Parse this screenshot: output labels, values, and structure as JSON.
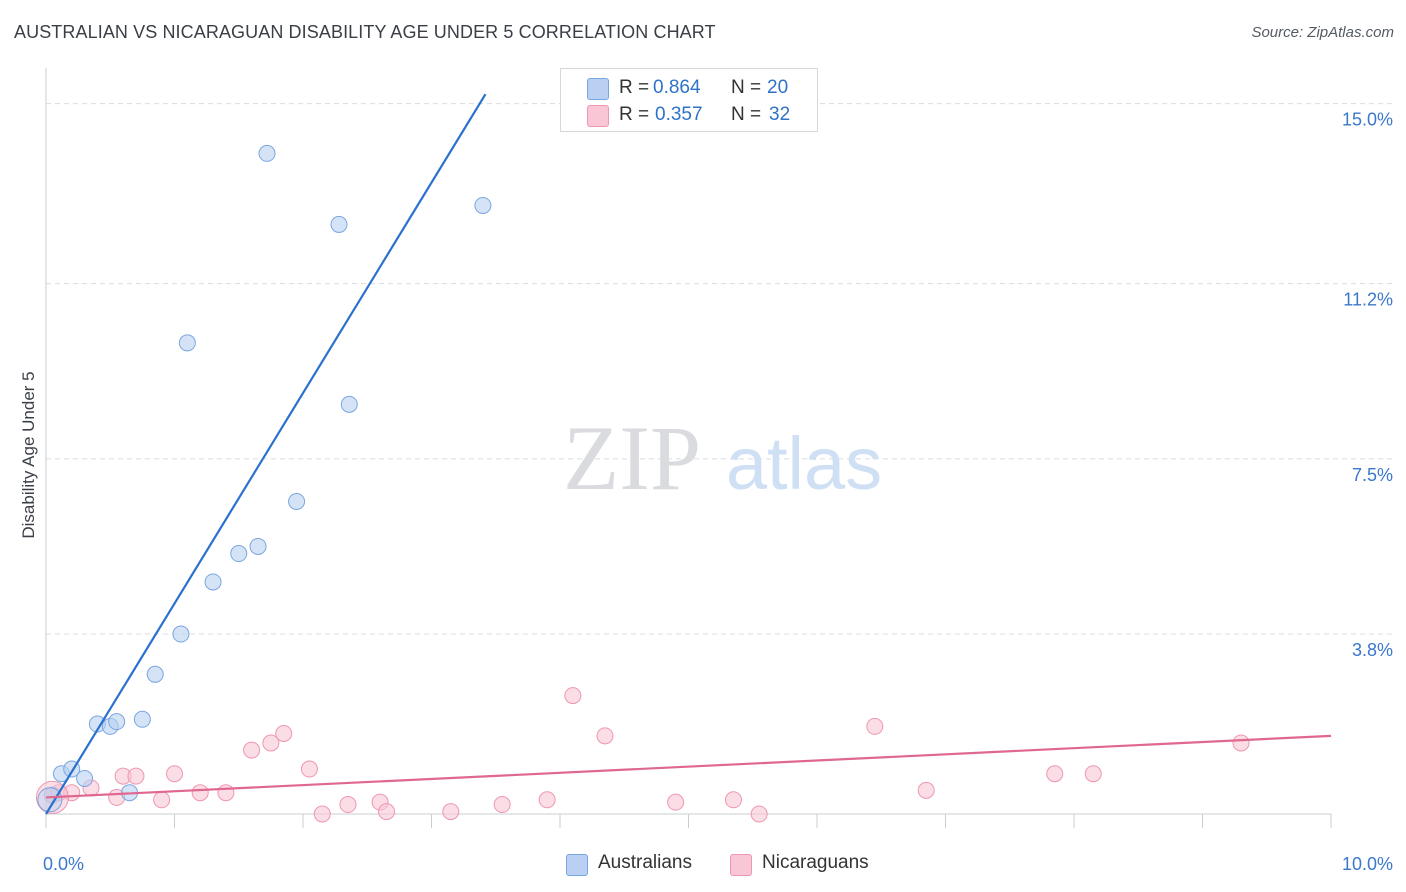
{
  "title": "AUSTRALIAN VS NICARAGUAN DISABILITY AGE UNDER 5 CORRELATION CHART",
  "source": "Source: ZipAtlas.com",
  "watermark": {
    "zip": "ZIP",
    "atlas": "atlas"
  },
  "colors": {
    "blue_fill": "#b9d0f2",
    "blue_stroke": "#7aa6e0",
    "blue_line": "#2a70cf",
    "pink_fill": "#f8c6d4",
    "pink_stroke": "#ee97b2",
    "pink_line": "#e0678f",
    "grid": "#d9dce1",
    "tick_label": "#3a78cc"
  },
  "stats": [
    {
      "series": "Australians",
      "r_label": "R =",
      "r_value": "0.864",
      "n_label": "N =",
      "n_value": "20"
    },
    {
      "series": "Nicaraguans",
      "r_label": "R =",
      "r_value": "0.357",
      "n_label": "N =",
      "n_value": "32"
    }
  ],
  "legend": [
    "Australians",
    "Nicaraguans"
  ],
  "chart_data": {
    "type": "scatter",
    "title": "AUSTRALIAN VS NICARAGUAN DISABILITY AGE UNDER 5 CORRELATION CHART",
    "xlabel": "",
    "ylabel": "Disability Age Under 5",
    "xlim": [
      0,
      10
    ],
    "ylim": [
      0,
      15.5
    ],
    "x_tick_labels": [
      {
        "value": 0,
        "label": "0.0%"
      },
      {
        "value": 10,
        "label": "10.0%"
      }
    ],
    "y_tick_labels": [
      {
        "value": 3.8,
        "label": "3.8%"
      },
      {
        "value": 7.5,
        "label": "7.5%"
      },
      {
        "value": 11.2,
        "label": "11.2%"
      },
      {
        "value": 15.0,
        "label": "15.0%"
      }
    ],
    "grid": true,
    "series": [
      {
        "name": "Australians",
        "x": [
          0.05,
          0.12,
          0.2,
          0.3,
          0.4,
          0.5,
          0.55,
          0.65,
          0.75,
          0.85,
          1.05,
          1.1,
          1.3,
          1.5,
          1.65,
          1.72,
          1.95,
          2.28,
          2.36,
          3.4
        ],
        "y": [
          0.4,
          0.85,
          0.95,
          0.75,
          1.9,
          1.85,
          1.95,
          0.45,
          2.0,
          2.95,
          3.8,
          9.95,
          4.9,
          5.5,
          5.65,
          13.95,
          6.6,
          12.45,
          8.65,
          12.85
        ],
        "trend": {
          "x": [
            0,
            3.42
          ],
          "y": [
            0.0,
            15.2
          ]
        }
      },
      {
        "name": "Nicaraguans",
        "x": [
          0.05,
          0.1,
          0.2,
          0.35,
          0.55,
          0.6,
          0.7,
          0.9,
          1.0,
          1.2,
          1.4,
          1.6,
          1.75,
          1.85,
          2.05,
          2.15,
          2.35,
          2.6,
          2.65,
          3.15,
          3.55,
          3.9,
          4.1,
          4.35,
          4.9,
          5.35,
          5.55,
          6.45,
          6.85,
          7.85,
          8.15,
          9.3
        ],
        "y": [
          0.4,
          0.45,
          0.45,
          0.55,
          0.35,
          0.8,
          0.8,
          0.3,
          0.85,
          0.45,
          0.45,
          1.35,
          1.5,
          1.7,
          0.95,
          0.0,
          0.2,
          0.25,
          0.05,
          0.05,
          0.2,
          0.3,
          2.5,
          1.65,
          0.25,
          0.3,
          0.0,
          1.85,
          0.5,
          0.85,
          0.85,
          1.5
        ],
        "trend": {
          "x": [
            0,
            10
          ],
          "y": [
            0.35,
            1.65
          ]
        }
      }
    ]
  }
}
